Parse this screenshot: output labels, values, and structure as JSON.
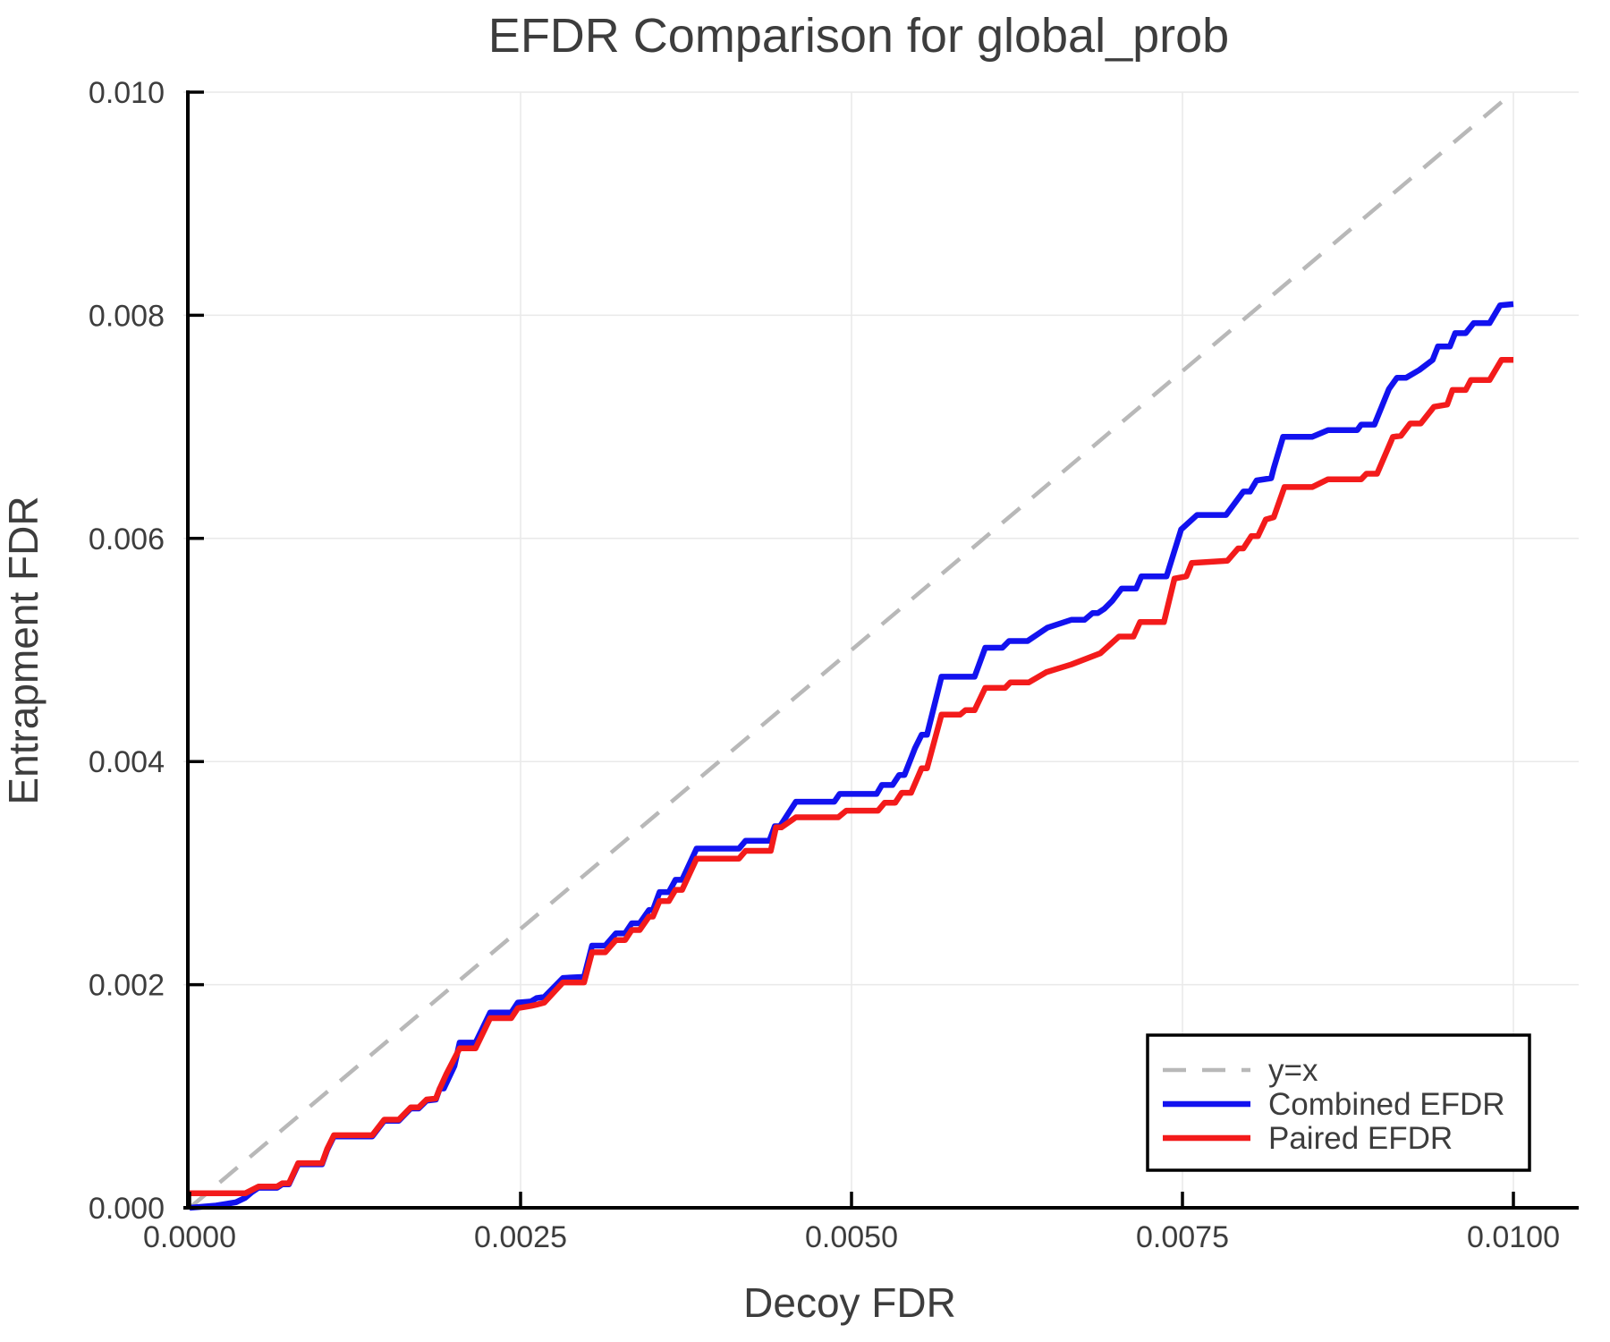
{
  "background": "#ffffff",
  "text_color": "#3d3d3d",
  "chart_data": {
    "type": "line",
    "title": "EFDR Comparison for global_prob",
    "xlabel": "Decoy FDR",
    "ylabel": "Entrapment FDR",
    "xlim": [
      0.0,
      0.01
    ],
    "ylim": [
      0.0,
      0.01
    ],
    "grid": true,
    "grid_color": "#e9e9e9",
    "legend_position": "lower right",
    "x_ticks": [
      {
        "v": 0.0,
        "label": "0.0000"
      },
      {
        "v": 0.0025,
        "label": "0.0025"
      },
      {
        "v": 0.005,
        "label": "0.0050"
      },
      {
        "v": 0.0075,
        "label": "0.0075"
      },
      {
        "v": 0.01,
        "label": "0.0100"
      }
    ],
    "y_ticks": [
      {
        "v": 0.0,
        "label": "0.000"
      },
      {
        "v": 0.002,
        "label": "0.002"
      },
      {
        "v": 0.004,
        "label": "0.004"
      },
      {
        "v": 0.006,
        "label": "0.006"
      },
      {
        "v": 0.008,
        "label": "0.008"
      },
      {
        "v": 0.01,
        "label": "0.010"
      }
    ],
    "series": [
      {
        "name": "y=x",
        "color": "#b8b8b8",
        "dashed": true,
        "points": [
          [
            0.0,
            0.0
          ],
          [
            0.01,
            0.01
          ]
        ]
      },
      {
        "name": "Combined EFDR",
        "color": "#1212ef",
        "dashed": false,
        "points": [
          [
            0,
            0
          ],
          [
            0.0002,
            2e-05
          ],
          [
            0.00035,
            5e-05
          ],
          [
            0.00042,
            9e-05
          ],
          [
            0.00047,
            0.00014
          ],
          [
            0.00052,
            0.00018
          ],
          [
            0.00066,
            0.00018
          ],
          [
            0.0007,
            0.00021
          ],
          [
            0.00075,
            0.00021
          ],
          [
            0.00082,
            0.00039
          ],
          [
            0.001,
            0.00039
          ],
          [
            0.00104,
            0.00052
          ],
          [
            0.00109,
            0.00064
          ],
          [
            0.00138,
            0.00064
          ],
          [
            0.00147,
            0.00078
          ],
          [
            0.00158,
            0.00078
          ],
          [
            0.00167,
            0.00089
          ],
          [
            0.00173,
            0.00089
          ],
          [
            0.00179,
            0.00096
          ],
          [
            0.00186,
            0.00097
          ],
          [
            0.00189,
            0.00107
          ],
          [
            0.00192,
            0.00107
          ],
          [
            0.00196,
            0.00117
          ],
          [
            0.002,
            0.00127
          ],
          [
            0.00204,
            0.00148
          ],
          [
            0.00216,
            0.00148
          ],
          [
            0.00227,
            0.00175
          ],
          [
            0.00243,
            0.00175
          ],
          [
            0.00248,
            0.00184
          ],
          [
            0.00258,
            0.00185
          ],
          [
            0.00262,
            0.00188
          ],
          [
            0.00268,
            0.00189
          ],
          [
            0.00282,
            0.00206
          ],
          [
            0.00298,
            0.00207
          ],
          [
            0.00304,
            0.00235
          ],
          [
            0.00314,
            0.00235
          ],
          [
            0.00322,
            0.00246
          ],
          [
            0.00329,
            0.00246
          ],
          [
            0.00334,
            0.00255
          ],
          [
            0.0034,
            0.00255
          ],
          [
            0.00347,
            0.00267
          ],
          [
            0.0035,
            0.00267
          ],
          [
            0.00355,
            0.00283
          ],
          [
            0.00362,
            0.00283
          ],
          [
            0.00367,
            0.00294
          ],
          [
            0.00372,
            0.00294
          ],
          [
            0.00383,
            0.00322
          ],
          [
            0.00415,
            0.00322
          ],
          [
            0.0042,
            0.00329
          ],
          [
            0.00438,
            0.00329
          ],
          [
            0.00442,
            0.00342
          ],
          [
            0.00446,
            0.00342
          ],
          [
            0.00458,
            0.00364
          ],
          [
            0.00487,
            0.00364
          ],
          [
            0.00491,
            0.00371
          ],
          [
            0.00519,
            0.00371
          ],
          [
            0.00523,
            0.00379
          ],
          [
            0.00531,
            0.00379
          ],
          [
            0.00536,
            0.00388
          ],
          [
            0.0054,
            0.00388
          ],
          [
            0.00548,
            0.00412
          ],
          [
            0.00553,
            0.00424
          ],
          [
            0.00557,
            0.00424
          ],
          [
            0.00568,
            0.00476
          ],
          [
            0.00593,
            0.00476
          ],
          [
            0.00601,
            0.00502
          ],
          [
            0.00614,
            0.00502
          ],
          [
            0.00619,
            0.00508
          ],
          [
            0.00633,
            0.00508
          ],
          [
            0.00648,
            0.0052
          ],
          [
            0.00666,
            0.00527
          ],
          [
            0.00676,
            0.00527
          ],
          [
            0.00682,
            0.00533
          ],
          [
            0.00686,
            0.00533
          ],
          [
            0.00691,
            0.00537
          ],
          [
            0.00697,
            0.00544
          ],
          [
            0.00704,
            0.00555
          ],
          [
            0.00715,
            0.00555
          ],
          [
            0.00719,
            0.00566
          ],
          [
            0.00738,
            0.00566
          ],
          [
            0.00749,
            0.00608
          ],
          [
            0.00761,
            0.00621
          ],
          [
            0.00783,
            0.00621
          ],
          [
            0.00796,
            0.00642
          ],
          [
            0.00801,
            0.00642
          ],
          [
            0.00806,
            0.00652
          ],
          [
            0.00817,
            0.00654
          ],
          [
            0.00819,
            0.00663
          ],
          [
            0.00826,
            0.00691
          ],
          [
            0.00848,
            0.00691
          ],
          [
            0.0086,
            0.00697
          ],
          [
            0.00882,
            0.00697
          ],
          [
            0.00885,
            0.00702
          ],
          [
            0.00895,
            0.00702
          ],
          [
            0.00906,
            0.00734
          ],
          [
            0.00912,
            0.00744
          ],
          [
            0.00919,
            0.00744
          ],
          [
            0.00929,
            0.00751
          ],
          [
            0.00939,
            0.0076
          ],
          [
            0.00943,
            0.00772
          ],
          [
            0.00952,
            0.00772
          ],
          [
            0.00956,
            0.00784
          ],
          [
            0.00964,
            0.00784
          ],
          [
            0.0097,
            0.00793
          ],
          [
            0.00982,
            0.00793
          ],
          [
            0.0099,
            0.00809
          ],
          [
            0.01,
            0.0081
          ]
        ]
      },
      {
        "name": "Paired EFDR",
        "color": "#f31b1b",
        "dashed": false,
        "points": [
          [
            0,
            0.00013
          ],
          [
            0.00042,
            0.00013
          ],
          [
            0.00052,
            0.00019
          ],
          [
            0.00066,
            0.00019
          ],
          [
            0.0007,
            0.00022
          ],
          [
            0.00075,
            0.00022
          ],
          [
            0.00082,
            0.0004
          ],
          [
            0.001,
            0.0004
          ],
          [
            0.00104,
            0.00053
          ],
          [
            0.00109,
            0.00065
          ],
          [
            0.00138,
            0.00065
          ],
          [
            0.00147,
            0.00079
          ],
          [
            0.00158,
            0.00079
          ],
          [
            0.00167,
            0.0009
          ],
          [
            0.00173,
            0.0009
          ],
          [
            0.00179,
            0.00097
          ],
          [
            0.00186,
            0.00098
          ],
          [
            0.00189,
            0.00107
          ],
          [
            0.00194,
            0.0012
          ],
          [
            0.00204,
            0.00143
          ],
          [
            0.00216,
            0.00143
          ],
          [
            0.00227,
            0.0017
          ],
          [
            0.00243,
            0.0017
          ],
          [
            0.00248,
            0.00179
          ],
          [
            0.00258,
            0.00181
          ],
          [
            0.00262,
            0.00182
          ],
          [
            0.00268,
            0.00184
          ],
          [
            0.00282,
            0.00202
          ],
          [
            0.00298,
            0.00202
          ],
          [
            0.00304,
            0.00229
          ],
          [
            0.00314,
            0.00229
          ],
          [
            0.00322,
            0.0024
          ],
          [
            0.00329,
            0.0024
          ],
          [
            0.00334,
            0.00249
          ],
          [
            0.0034,
            0.00249
          ],
          [
            0.00347,
            0.00261
          ],
          [
            0.0035,
            0.00261
          ],
          [
            0.00355,
            0.00275
          ],
          [
            0.00362,
            0.00275
          ],
          [
            0.00367,
            0.00285
          ],
          [
            0.00372,
            0.00285
          ],
          [
            0.00383,
            0.00313
          ],
          [
            0.00415,
            0.00313
          ],
          [
            0.0042,
            0.0032
          ],
          [
            0.00439,
            0.0032
          ],
          [
            0.00443,
            0.00341
          ],
          [
            0.00447,
            0.00341
          ],
          [
            0.00458,
            0.0035
          ],
          [
            0.0049,
            0.0035
          ],
          [
            0.00496,
            0.00356
          ],
          [
            0.0052,
            0.00356
          ],
          [
            0.00525,
            0.00363
          ],
          [
            0.00533,
            0.00363
          ],
          [
            0.00538,
            0.00372
          ],
          [
            0.00545,
            0.00372
          ],
          [
            0.00553,
            0.00394
          ],
          [
            0.00557,
            0.00394
          ],
          [
            0.00568,
            0.00442
          ],
          [
            0.00582,
            0.00442
          ],
          [
            0.00586,
            0.00446
          ],
          [
            0.00593,
            0.00446
          ],
          [
            0.00601,
            0.00466
          ],
          [
            0.00616,
            0.00466
          ],
          [
            0.0062,
            0.00471
          ],
          [
            0.00634,
            0.00471
          ],
          [
            0.00647,
            0.0048
          ],
          [
            0.00666,
            0.00487
          ],
          [
            0.00688,
            0.00497
          ],
          [
            0.00702,
            0.00512
          ],
          [
            0.00713,
            0.00512
          ],
          [
            0.00718,
            0.00525
          ],
          [
            0.00736,
            0.00525
          ],
          [
            0.00744,
            0.00564
          ],
          [
            0.00753,
            0.00566
          ],
          [
            0.00757,
            0.00578
          ],
          [
            0.00784,
            0.0058
          ],
          [
            0.00792,
            0.00591
          ],
          [
            0.00796,
            0.00591
          ],
          [
            0.00802,
            0.00602
          ],
          [
            0.00807,
            0.00602
          ],
          [
            0.00813,
            0.00617
          ],
          [
            0.00819,
            0.00619
          ],
          [
            0.00827,
            0.00646
          ],
          [
            0.00848,
            0.00646
          ],
          [
            0.0086,
            0.00653
          ],
          [
            0.00885,
            0.00653
          ],
          [
            0.00889,
            0.00658
          ],
          [
            0.00897,
            0.00658
          ],
          [
            0.00909,
            0.00691
          ],
          [
            0.00915,
            0.00692
          ],
          [
            0.00922,
            0.00703
          ],
          [
            0.0093,
            0.00703
          ],
          [
            0.0094,
            0.00718
          ],
          [
            0.0095,
            0.0072
          ],
          [
            0.00954,
            0.00733
          ],
          [
            0.00964,
            0.00733
          ],
          [
            0.00968,
            0.00742
          ],
          [
            0.00982,
            0.00742
          ],
          [
            0.00991,
            0.0076
          ],
          [
            0.01,
            0.0076
          ]
        ]
      }
    ]
  }
}
